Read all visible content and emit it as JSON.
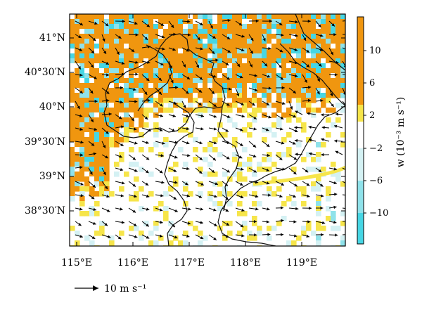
{
  "map": {
    "lat_labels": [
      "41°N",
      "40°30′N",
      "40°N",
      "39°30′N",
      "39°N",
      "38°30′N"
    ],
    "lon_labels": [
      "115°E",
      "116°E",
      "117°E",
      "118°E",
      "119°E"
    ],
    "lon_range": [
      114.9,
      119.8
    ],
    "lat_range": [
      38.0,
      41.3
    ]
  },
  "colorbar": {
    "title": "w (10⁻³ m s⁻¹)",
    "tick_labels": [
      "10",
      "6",
      "2",
      "−2",
      "−6",
      "−10"
    ],
    "colors": {
      "strong_up": "#f0960f",
      "up": "#f6e54a",
      "neutral": "#ffffff",
      "weak_down": "#d4f1f3",
      "down": "#8fe2ea",
      "strong_down": "#46d6e4"
    }
  },
  "reference_vector": {
    "label": "10 m s⁻¹"
  },
  "colors": {
    "boundary": "#111111",
    "arrow": "#000000",
    "frame": "#000000"
  }
}
